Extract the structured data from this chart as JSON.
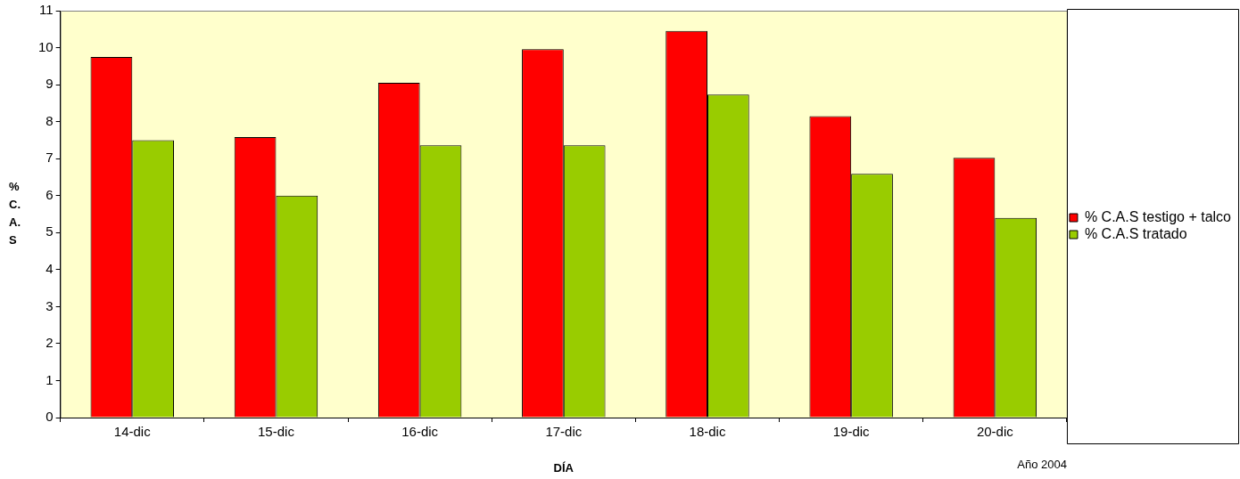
{
  "chart_data": {
    "type": "bar",
    "xlabel": "DÍA",
    "ylabel": "% C. A. S",
    "annotations": [
      "Año 2004"
    ],
    "categories": [
      "14-dic",
      "15-dic",
      "16-dic",
      "17-dic",
      "18-dic",
      "19-dic",
      "20-dic"
    ],
    "series": [
      {
        "name": "% C.A.S testigo + talco",
        "color": "#ff0000",
        "values": [
          9.75,
          7.58,
          9.05,
          9.96,
          10.45,
          8.15,
          7.02
        ]
      },
      {
        "name": "% C.A.S tratado",
        "color": "#99cc00",
        "values": [
          7.5,
          6.0,
          7.36,
          7.36,
          8.73,
          6.59,
          5.4
        ]
      }
    ],
    "ylim": [
      0,
      11
    ],
    "yticks": [
      0,
      1,
      2,
      3,
      4,
      5,
      6,
      7,
      8,
      9,
      10,
      11
    ],
    "legend": "right"
  }
}
